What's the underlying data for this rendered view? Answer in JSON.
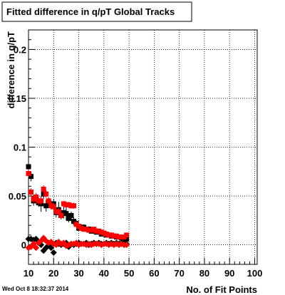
{
  "timestamp": "Wed Oct  8 18:32:37 2014",
  "colors": {
    "series_black": "#000000",
    "series_red": "#ff0000",
    "background": "#ffffff"
  },
  "chart_data": {
    "type": "scatter",
    "title": "Fitted difference in q/pT  Global Tracks",
    "xlabel": "No. of Fit Points",
    "ylabel": "difference in q/pT",
    "xlim": [
      10,
      101
    ],
    "ylim": [
      -0.02,
      0.22
    ],
    "x_ticks": [
      10,
      20,
      30,
      40,
      50,
      60,
      70,
      80,
      90,
      100
    ],
    "y_ticks": [
      0,
      0.05,
      0.1,
      0.15,
      0.2
    ],
    "x_tick_labels": [
      "10",
      "20",
      "30",
      "40",
      "50",
      "60",
      "70",
      "80",
      "90",
      "100"
    ],
    "y_tick_labels": [
      "0",
      "0.05",
      "0.1",
      "0.15",
      "0.2"
    ],
    "grid": true,
    "series": [
      {
        "color": "#000000",
        "marker": "square",
        "x": [
          10,
          11,
          12,
          13,
          14,
          15,
          16,
          17,
          18,
          19,
          20,
          21,
          22,
          23,
          24,
          25,
          26,
          27,
          28,
          29,
          30,
          31,
          32,
          33,
          34,
          35,
          36,
          37,
          38,
          39,
          40,
          41,
          42,
          43,
          44,
          45,
          46,
          47,
          48,
          49
        ],
        "y": [
          0.08,
          0.07,
          0.045,
          0.048,
          0.043,
          0.042,
          0.052,
          0.04,
          0.043,
          0.041,
          0.042,
          0.033,
          0.036,
          0.03,
          0.033,
          0.032,
          0.027,
          0.03,
          0.024,
          0.022,
          0.017,
          0.018,
          0.018,
          0.016,
          0.016,
          0.014,
          0.015,
          0.013,
          0.014,
          0.011,
          0.012,
          0.01,
          0.01,
          0.009,
          0.009,
          0.008,
          0.008,
          0.007,
          0.007,
          0.006
        ],
        "err": [
          0.005,
          0.005,
          0.005,
          0.004,
          0.004,
          0.008,
          0.005,
          0.006,
          0.005,
          0.004,
          0.005,
          0.005,
          0.008,
          0.004,
          0.006,
          0.007,
          0.004,
          0.004,
          0.004,
          0.003,
          0.003,
          0.003,
          0.003,
          0.002,
          0.003,
          0.002,
          0.002,
          0.002,
          0.002,
          0.002,
          0.002,
          0.002,
          0.002,
          0.002,
          0.001,
          0.002,
          0.002,
          0.002,
          0.001,
          0.001
        ]
      },
      {
        "color": "#ff0000",
        "marker": "square",
        "x": [
          10,
          11,
          12,
          13,
          14,
          15,
          16,
          17,
          18,
          19,
          20,
          21,
          22,
          23,
          24,
          25,
          26,
          27,
          28,
          29,
          30,
          31,
          32,
          33,
          34,
          35,
          36,
          37,
          38,
          39,
          40,
          41,
          42,
          43,
          44,
          45,
          46,
          47,
          48,
          49
        ],
        "y": [
          0.073,
          0.054,
          0.047,
          0.049,
          0.045,
          0.045,
          0.057,
          0.052,
          0.045,
          0.04,
          0.039,
          0.034,
          0.034,
          0.03,
          0.042,
          0.041,
          0.041,
          0.04,
          0.04,
          0.021,
          0.019,
          0.017,
          0.016,
          0.016,
          0.015,
          0.015,
          0.016,
          0.014,
          0.014,
          0.013,
          0.012,
          0.011,
          0.01,
          0.01,
          0.009,
          0.009,
          0.008,
          0.008,
          0.008,
          0.01
        ],
        "err": [
          0.004,
          0.004,
          0.004,
          0.004,
          0.004,
          0.004,
          0.004,
          0.004,
          0.004,
          0.004,
          0.004,
          0.003,
          0.004,
          0.003,
          0.003,
          0.003,
          0.003,
          0.003,
          0.003,
          0.003,
          0.002,
          0.002,
          0.002,
          0.002,
          0.002,
          0.002,
          0.002,
          0.002,
          0.002,
          0.002,
          0.002,
          0.002,
          0.002,
          0.002,
          0.002,
          0.002,
          0.002,
          0.002,
          0.002,
          0.002
        ]
      },
      {
        "color": "#000000",
        "marker": "diamond",
        "x": [
          10,
          11,
          12,
          13,
          14,
          15,
          16,
          17,
          18,
          19,
          20,
          21,
          22,
          23,
          24,
          25,
          26,
          27,
          28,
          29,
          30,
          31,
          32,
          33,
          34,
          35,
          36,
          37,
          38,
          39,
          40,
          41,
          42,
          43,
          44,
          45,
          46,
          47,
          48,
          49
        ],
        "y": [
          0.006,
          0.006,
          0.005,
          0.006,
          0.003,
          0.0,
          -0.006,
          -0.003,
          -0.001,
          -0.003,
          -0.008,
          0.002,
          0.001,
          0.0,
          0.001,
          0.002,
          -0.002,
          0.001,
          0.0,
          0.001,
          0.002,
          0.001,
          0.001,
          0.002,
          0.0,
          0.001,
          0.002,
          0.001,
          0.002,
          0.001,
          0.001,
          0.002,
          0.001,
          0.002,
          0.001,
          0.002,
          0.001,
          0.002,
          0.002,
          0.001
        ],
        "err": [
          0.002,
          0.002,
          0.002,
          0.002,
          0.002,
          0.003,
          0.003,
          0.003,
          0.002,
          0.002,
          0.003,
          0.002,
          0.002,
          0.002,
          0.002,
          0.002,
          0.002,
          0.002,
          0.002,
          0.002,
          0.001,
          0.001,
          0.001,
          0.001,
          0.001,
          0.001,
          0.001,
          0.001,
          0.001,
          0.001,
          0.001,
          0.001,
          0.001,
          0.001,
          0.001,
          0.001,
          0.001,
          0.001,
          0.001,
          0.001
        ]
      },
      {
        "color": "#ff0000",
        "marker": "diamond",
        "x": [
          10,
          11,
          12,
          13,
          14,
          15,
          16,
          17,
          18,
          19,
          20,
          21,
          22,
          23,
          24,
          25,
          26,
          27,
          28,
          29,
          30,
          31,
          32,
          33,
          34,
          35,
          36,
          37,
          38,
          39,
          40,
          41,
          42,
          43,
          44,
          45,
          46,
          47,
          48,
          49
        ],
        "y": [
          -0.003,
          -0.002,
          0.001,
          -0.003,
          0.002,
          0.004,
          0.007,
          0.004,
          0.002,
          0.003,
          0.001,
          0.0,
          0.003,
          0.001,
          0.002,
          -0.001,
          0.0,
          0.001,
          0.001,
          0.002,
          0.0,
          0.001,
          0.001,
          0.0,
          0.001,
          0.0,
          0.001,
          0.001,
          0.001,
          0.0,
          0.001,
          0.001,
          0.0,
          0.001,
          0.0,
          0.001,
          0.0,
          0.001,
          0.0,
          0.0
        ],
        "err": [
          0.002,
          0.002,
          0.002,
          0.002,
          0.002,
          0.002,
          0.002,
          0.002,
          0.002,
          0.002,
          0.002,
          0.002,
          0.002,
          0.002,
          0.002,
          0.002,
          0.002,
          0.002,
          0.002,
          0.002,
          0.001,
          0.001,
          0.001,
          0.001,
          0.001,
          0.001,
          0.001,
          0.001,
          0.001,
          0.001,
          0.001,
          0.001,
          0.001,
          0.001,
          0.001,
          0.001,
          0.001,
          0.001,
          0.001,
          0.001
        ]
      }
    ]
  }
}
